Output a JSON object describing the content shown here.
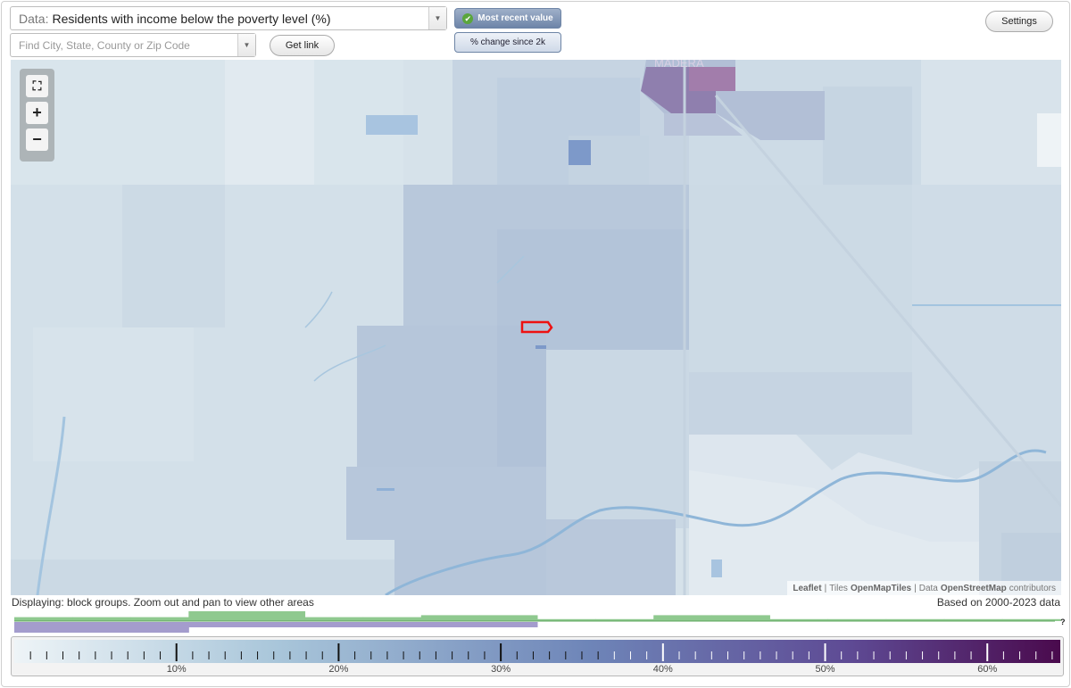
{
  "data_selector": {
    "prefix": "Data:",
    "value": "Residents with income below the poverty level (%)"
  },
  "search": {
    "placeholder": "Find City, State, County or Zip Code"
  },
  "buttons": {
    "get_link": "Get link",
    "settings": "Settings",
    "most_recent": "Most recent value",
    "pct_change": "% change since 2k"
  },
  "map": {
    "place_label": "MADERA",
    "attribution": {
      "leaflet": "Leaflet",
      "sep1": "|",
      "tiles_prefix": "Tiles",
      "tiles": "OpenMapTiles",
      "sep2": "|",
      "data_prefix": "Data",
      "data": "OpenStreetMap",
      "suffix": "contributors"
    }
  },
  "footer": {
    "display_note": "Displaying: block groups. Zoom out and pan to view other areas",
    "based_on": "Based on 2000-2023 data",
    "question": "?"
  },
  "legend": {
    "tick_labels": [
      "10%",
      "20%",
      "30%",
      "40%",
      "50%",
      "60%"
    ],
    "tick_values": [
      10,
      20,
      30,
      40,
      50,
      60
    ],
    "range": [
      0,
      64.5
    ],
    "colors": {
      "low": "#eef4f7",
      "mid1": "#a9c6da",
      "mid2": "#6e85b8",
      "mid3": "#5e4a94",
      "high": "#4a0a4d"
    }
  },
  "histogram": {
    "green_levels": [
      0.4,
      0.4,
      0.4,
      1.0,
      1.0,
      0.4,
      0.4,
      0.6,
      0.6,
      0.2,
      0.2,
      0.6,
      0.6,
      0.2,
      0.2,
      0.2,
      0.2,
      0.2
    ],
    "purple_levels": [
      1.0,
      1.0,
      1.0,
      0.5,
      0.5,
      0.5,
      0.5,
      0.5,
      0.5,
      0,
      0,
      0,
      0,
      0,
      0,
      0,
      0,
      0
    ],
    "colors": {
      "green": "#8fc98f",
      "green_edge": "#5aa45a",
      "purple": "#a49ccd"
    }
  },
  "colors": {
    "selection_outline": "#ee1111",
    "water": "#8fb6d8"
  }
}
